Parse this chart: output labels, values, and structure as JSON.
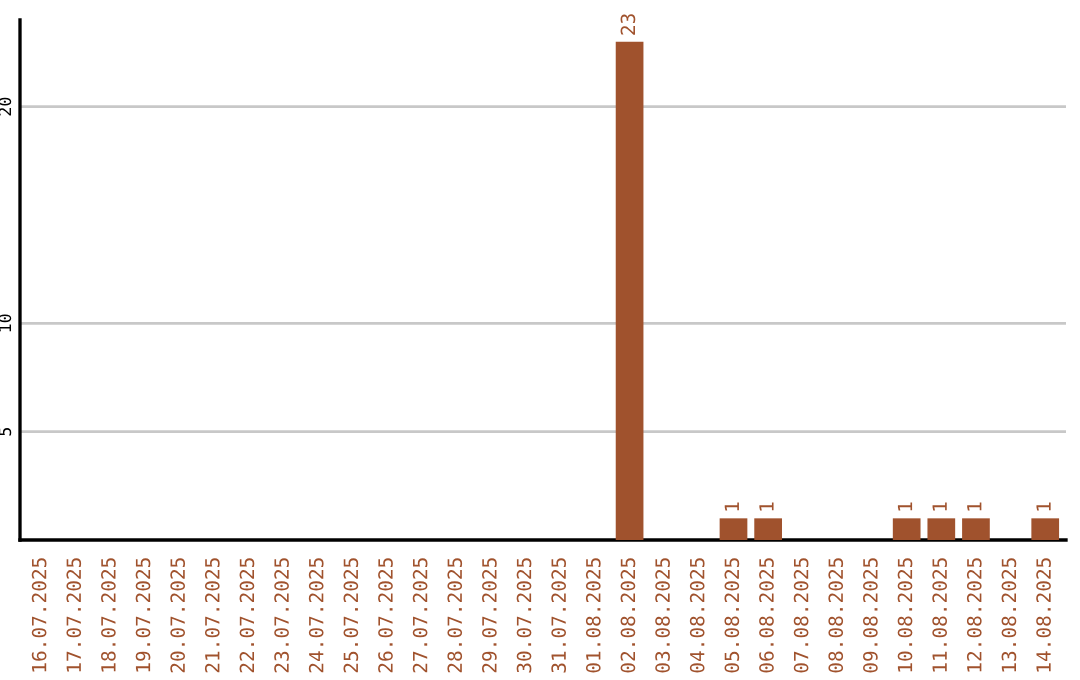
{
  "chart_data": {
    "type": "bar",
    "categories": [
      "16.07.2025",
      "17.07.2025",
      "18.07.2025",
      "19.07.2025",
      "20.07.2025",
      "21.07.2025",
      "22.07.2025",
      "23.07.2025",
      "24.07.2025",
      "25.07.2025",
      "26.07.2025",
      "27.07.2025",
      "28.07.2025",
      "29.07.2025",
      "30.07.2025",
      "31.07.2025",
      "01.08.2025",
      "02.08.2025",
      "03.08.2025",
      "04.08.2025",
      "05.08.2025",
      "06.08.2025",
      "07.08.2025",
      "08.08.2025",
      "09.08.2025",
      "10.08.2025",
      "11.08.2025",
      "12.08.2025",
      "13.08.2025",
      "14.08.2025"
    ],
    "values": [
      0,
      0,
      0,
      0,
      0,
      0,
      0,
      0,
      0,
      0,
      0,
      0,
      0,
      0,
      0,
      0,
      0,
      23,
      0,
      0,
      1,
      1,
      0,
      0,
      0,
      1,
      1,
      1,
      0,
      1
    ],
    "value_labels": [
      null,
      null,
      null,
      null,
      null,
      null,
      null,
      null,
      null,
      null,
      null,
      null,
      null,
      null,
      null,
      null,
      null,
      "23",
      null,
      null,
      "1",
      "1",
      null,
      null,
      null,
      "1",
      "1",
      "1",
      null,
      "1"
    ],
    "color": "#a0522d",
    "ylim": [
      0,
      24
    ],
    "yticks": [
      5,
      10,
      20
    ],
    "grid": "y",
    "legend": false
  }
}
